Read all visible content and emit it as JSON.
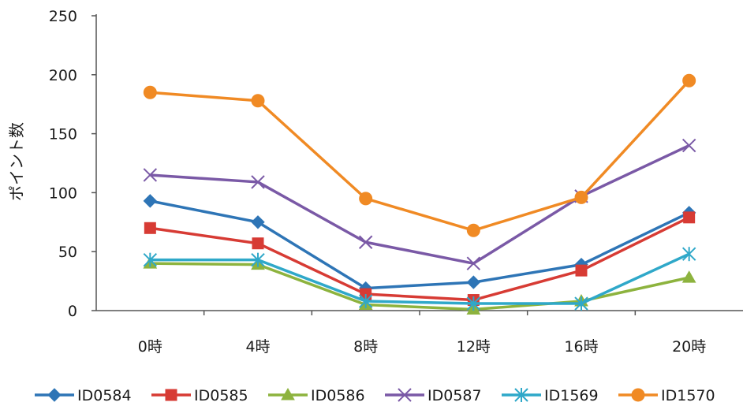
{
  "chart_data": {
    "type": "line",
    "title": "",
    "xlabel": "",
    "ylabel": "ポイント数",
    "categories": [
      "0時",
      "4時",
      "8時",
      "12時",
      "16時",
      "20時"
    ],
    "ylim": [
      0,
      250
    ],
    "yticks": [
      0,
      50,
      100,
      150,
      200,
      250
    ],
    "grid": false,
    "legend": "bottom",
    "series": [
      {
        "name": "ID0584",
        "color": "#2e75b6",
        "marker": "diamond",
        "values": [
          93,
          75,
          19,
          24,
          39,
          83
        ]
      },
      {
        "name": "ID0585",
        "color": "#d73b34",
        "marker": "square",
        "values": [
          70,
          57,
          14,
          9,
          34,
          79
        ]
      },
      {
        "name": "ID0586",
        "color": "#8db33e",
        "marker": "triangle",
        "values": [
          40,
          39,
          5,
          1,
          8,
          28
        ]
      },
      {
        "name": "ID0587",
        "color": "#7a59a6",
        "marker": "x",
        "values": [
          115,
          109,
          58,
          40,
          97,
          140
        ]
      },
      {
        "name": "ID1569",
        "color": "#2fa8c9",
        "marker": "star",
        "values": [
          43,
          43,
          8,
          6,
          6,
          48
        ]
      },
      {
        "name": "ID1570",
        "color": "#f08a24",
        "marker": "circle",
        "values": [
          185,
          178,
          95,
          68,
          96,
          195
        ]
      }
    ]
  }
}
